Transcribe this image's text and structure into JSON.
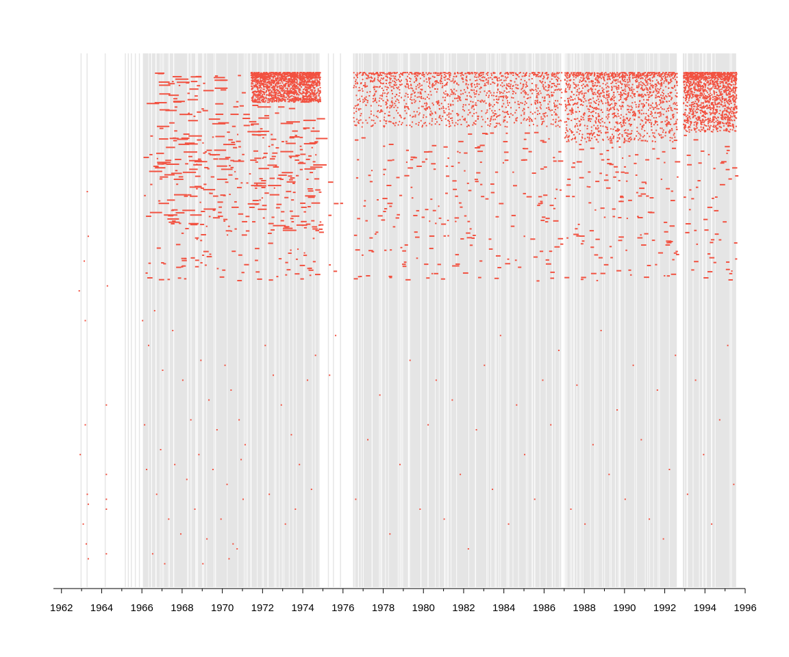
{
  "chart_data": {
    "type": "scatter",
    "title": "",
    "xlabel": "",
    "ylabel": "",
    "xlim": [
      1961.6,
      1996.0
    ],
    "x_ticks": [
      1962,
      1964,
      1966,
      1968,
      1970,
      1972,
      1974,
      1976,
      1978,
      1980,
      1982,
      1984,
      1986,
      1988,
      1990,
      1992,
      1994,
      1996
    ],
    "x_tick_labels": [
      "1962",
      "1964",
      "1966",
      "1968",
      "1970",
      "1972",
      "1974",
      "1976",
      "1978",
      "1980",
      "1982",
      "1984",
      "1986",
      "1988",
      "1990",
      "1992",
      "1994",
      "1996"
    ],
    "y_axis_shown": false,
    "grid": false,
    "background_bands": {
      "description": "light grey vertical bands marking observed periods",
      "intervals": [
        [
          1962.95,
          1963.0
        ],
        [
          1963.25,
          1963.3
        ],
        [
          1964.15,
          1964.2
        ],
        [
          1965.15,
          1965.2
        ],
        [
          1965.3,
          1965.35
        ],
        [
          1965.45,
          1965.5
        ],
        [
          1965.65,
          1965.7
        ],
        [
          1965.85,
          1965.9
        ],
        [
          1966.05,
          1971.4
        ],
        [
          1971.45,
          1974.85
        ],
        [
          1975.25,
          1975.3
        ],
        [
          1975.5,
          1975.55
        ],
        [
          1975.85,
          1975.9
        ],
        [
          1976.5,
          1986.85
        ],
        [
          1987.0,
          1992.6
        ],
        [
          1992.9,
          1995.55
        ]
      ],
      "color": "#e5e5e5"
    },
    "series": [
      {
        "color": "#f25140",
        "points": [
          [
            1962.85,
            0.44
          ],
          [
            1963.1,
            0.38
          ],
          [
            1963.25,
            0.24
          ],
          [
            1963.3,
            0.33
          ],
          [
            1963.15,
            0.5
          ],
          [
            1962.9,
            0.77
          ],
          [
            1963.05,
            0.91
          ],
          [
            1963.2,
            0.95
          ],
          [
            1963.3,
            0.98
          ],
          [
            1964.2,
            0.67
          ],
          [
            1964.2,
            0.81
          ],
          [
            1964.2,
            0.86
          ],
          [
            1964.2,
            0.88
          ],
          [
            1964.2,
            0.97
          ],
          [
            1964.25,
            0.43
          ],
          [
            1963.3,
            0.87
          ],
          [
            1963.15,
            0.71
          ],
          [
            1963.25,
            0.85
          ],
          [
            1966.0,
            0.5
          ],
          [
            1966.3,
            0.55
          ],
          [
            1966.6,
            0.48
          ],
          [
            1967.0,
            0.6
          ],
          [
            1967.5,
            0.52
          ],
          [
            1968.0,
            0.62
          ],
          [
            1968.4,
            0.7
          ],
          [
            1968.9,
            0.58
          ],
          [
            1969.3,
            0.66
          ],
          [
            1969.7,
            0.72
          ],
          [
            1970.1,
            0.59
          ],
          [
            1970.4,
            0.64
          ],
          [
            1970.8,
            0.7
          ],
          [
            1971.1,
            0.75
          ],
          [
            1966.2,
            0.8
          ],
          [
            1966.7,
            0.85
          ],
          [
            1967.3,
            0.9
          ],
          [
            1967.9,
            0.93
          ],
          [
            1968.6,
            0.88
          ],
          [
            1969.2,
            0.94
          ],
          [
            1969.9,
            0.9
          ],
          [
            1970.5,
            0.95
          ],
          [
            1971.0,
            0.86
          ],
          [
            1966.1,
            0.71
          ],
          [
            1966.9,
            0.76
          ],
          [
            1967.6,
            0.79
          ],
          [
            1968.2,
            0.82
          ],
          [
            1968.8,
            0.77
          ],
          [
            1969.5,
            0.8
          ],
          [
            1970.2,
            0.83
          ],
          [
            1970.9,
            0.78
          ],
          [
            1966.5,
            0.97
          ],
          [
            1967.1,
            0.99
          ],
          [
            1969.0,
            0.99
          ],
          [
            1970.3,
            0.98
          ],
          [
            1970.7,
            0.96
          ],
          [
            1972.1,
            0.55
          ],
          [
            1972.5,
            0.61
          ],
          [
            1972.9,
            0.67
          ],
          [
            1973.4,
            0.73
          ],
          [
            1973.8,
            0.79
          ],
          [
            1974.2,
            0.62
          ],
          [
            1974.6,
            0.57
          ],
          [
            1972.3,
            0.85
          ],
          [
            1973.1,
            0.91
          ],
          [
            1973.6,
            0.88
          ],
          [
            1974.4,
            0.84
          ],
          [
            1975.3,
            0.61
          ],
          [
            1975.6,
            0.53
          ],
          [
            1976.6,
            0.86
          ],
          [
            1977.2,
            0.74
          ],
          [
            1977.8,
            0.65
          ],
          [
            1978.3,
            0.93
          ],
          [
            1978.8,
            0.79
          ],
          [
            1979.3,
            0.58
          ],
          [
            1979.8,
            0.88
          ],
          [
            1980.2,
            0.71
          ],
          [
            1980.6,
            0.62
          ],
          [
            1981.0,
            0.9
          ],
          [
            1981.4,
            0.66
          ],
          [
            1981.8,
            0.81
          ],
          [
            1982.2,
            0.96
          ],
          [
            1982.6,
            0.72
          ],
          [
            1983.0,
            0.59
          ],
          [
            1983.4,
            0.84
          ],
          [
            1983.8,
            0.53
          ],
          [
            1984.2,
            0.91
          ],
          [
            1984.6,
            0.67
          ],
          [
            1985.0,
            0.77
          ],
          [
            1985.5,
            0.86
          ],
          [
            1985.9,
            0.62
          ],
          [
            1986.3,
            0.71
          ],
          [
            1986.7,
            0.56
          ],
          [
            1987.3,
            0.88
          ],
          [
            1987.6,
            0.63
          ],
          [
            1988.0,
            0.91
          ],
          [
            1988.4,
            0.75
          ],
          [
            1988.8,
            0.52
          ],
          [
            1989.2,
            0.81
          ],
          [
            1989.6,
            0.68
          ],
          [
            1990.0,
            0.86
          ],
          [
            1990.4,
            0.59
          ],
          [
            1990.8,
            0.74
          ],
          [
            1991.2,
            0.9
          ],
          [
            1991.6,
            0.64
          ],
          [
            1991.9,
            0.94
          ],
          [
            1992.2,
            0.8
          ],
          [
            1992.5,
            0.57
          ],
          [
            1993.1,
            0.85
          ],
          [
            1993.5,
            0.62
          ],
          [
            1993.9,
            0.77
          ],
          [
            1994.3,
            0.91
          ],
          [
            1994.7,
            0.7
          ],
          [
            1995.1,
            0.55
          ],
          [
            1995.4,
            0.83
          ]
        ]
      }
    ],
    "y_units": "normalized row position (0 = top row, 1 = bottom row)"
  }
}
